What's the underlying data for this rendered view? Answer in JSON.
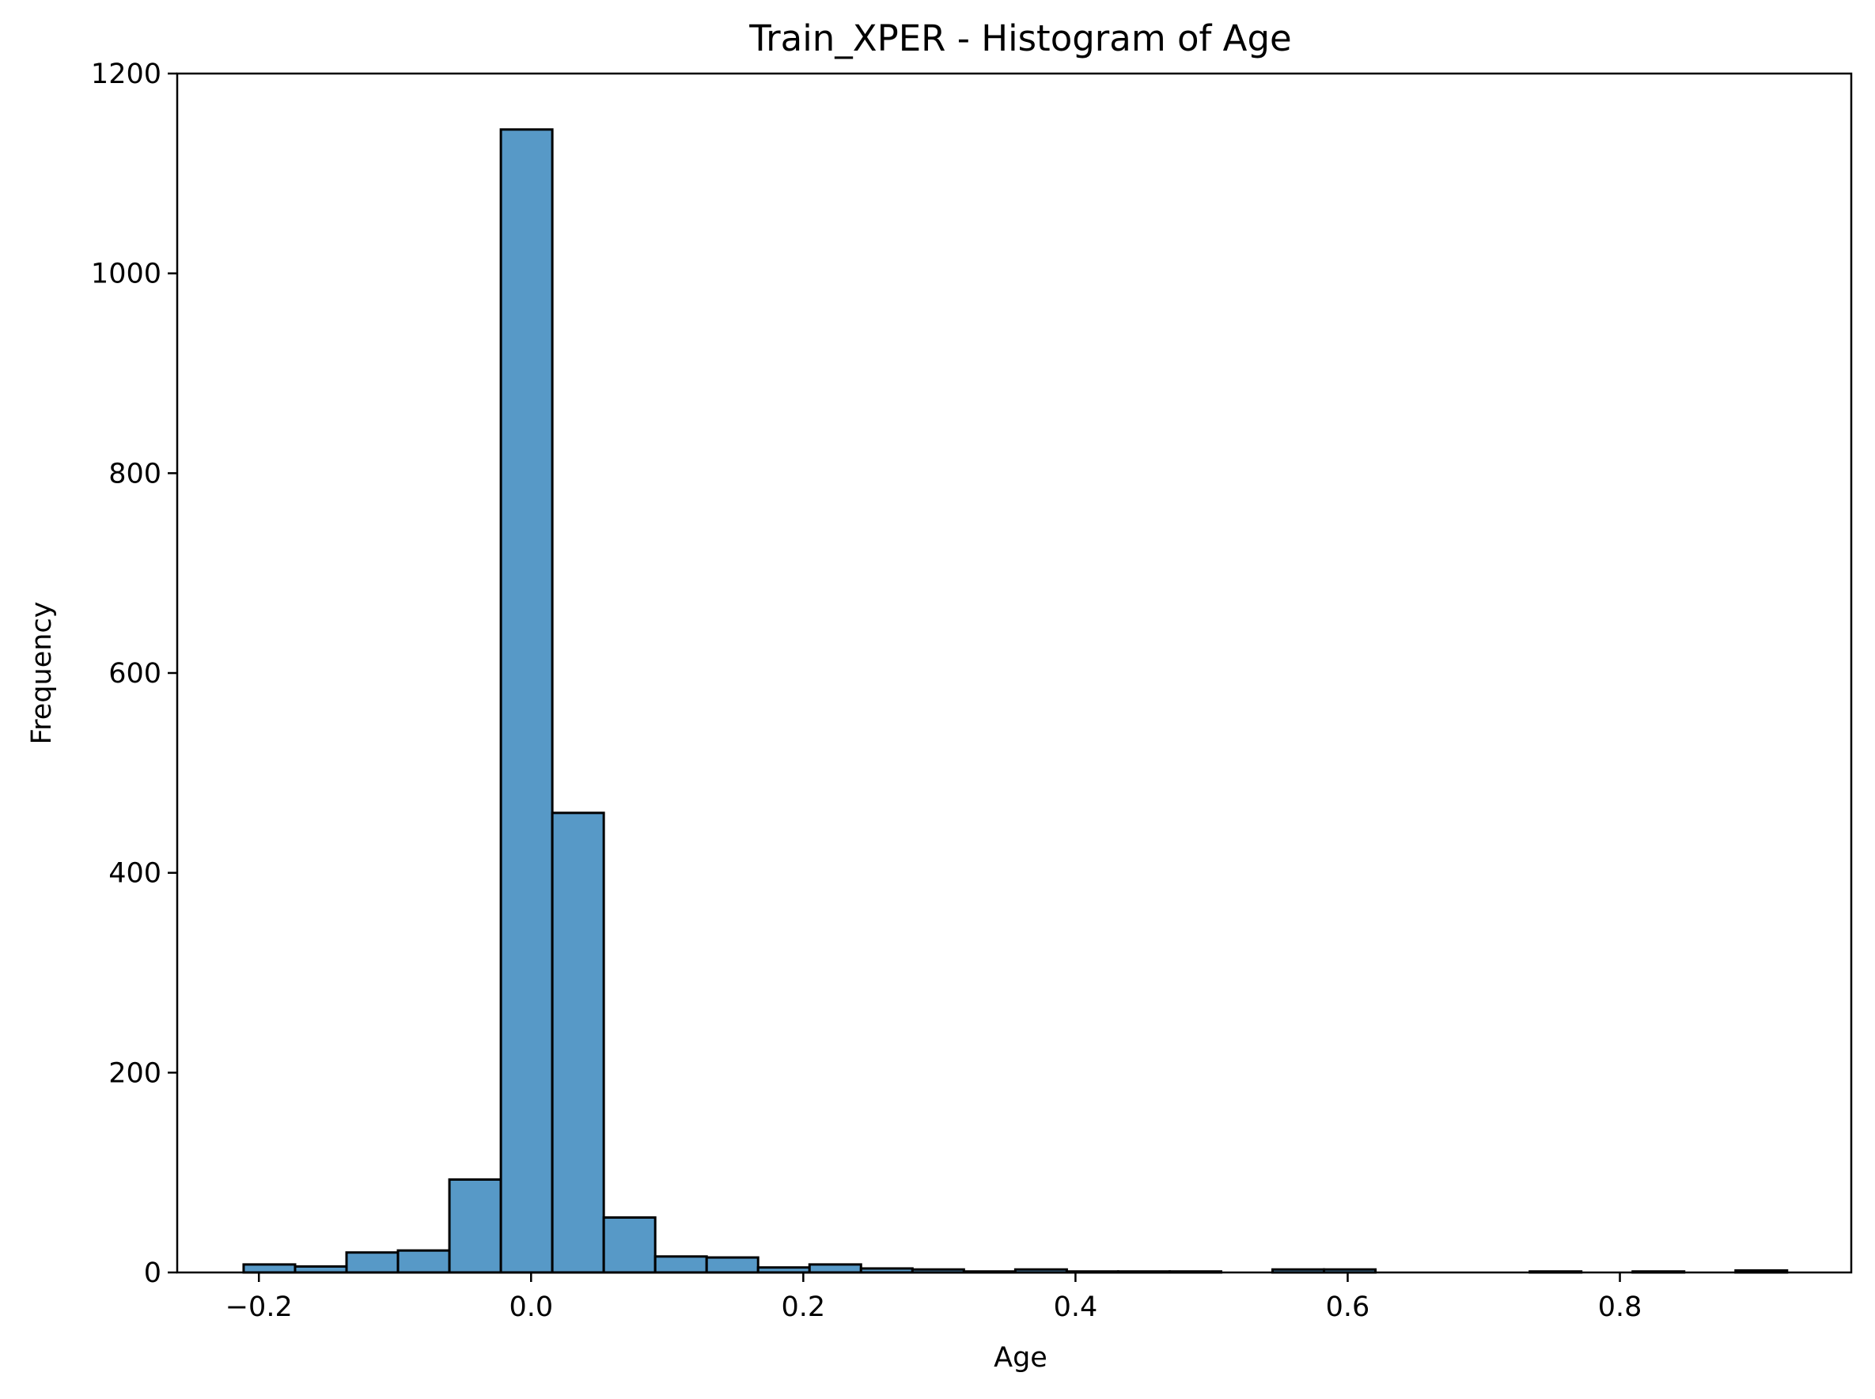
{
  "chart_data": {
    "type": "bar",
    "subtype": "histogram",
    "title": "Train_XPER - Histogram of Age",
    "xlabel": "Age",
    "ylabel": "Frequency",
    "xlim": [
      -0.26,
      0.97
    ],
    "ylim": [
      0,
      1200
    ],
    "x_ticks": [
      -0.2,
      0.0,
      0.2,
      0.4,
      0.6,
      0.8
    ],
    "x_tick_labels": [
      "−0.2",
      "0.0",
      "0.2",
      "0.4",
      "0.6",
      "0.8"
    ],
    "y_ticks": [
      0,
      200,
      400,
      600,
      800,
      1000,
      1200
    ],
    "y_tick_labels": [
      "0",
      "200",
      "400",
      "600",
      "800",
      "1000",
      "1200"
    ],
    "grid": false,
    "legend": "none",
    "bar_color": "#5799c7",
    "edge_color": "#000000",
    "bins": [
      {
        "x0": -0.2112,
        "x1": -0.1734,
        "count": 8
      },
      {
        "x0": -0.1734,
        "x1": -0.1356,
        "count": 6
      },
      {
        "x0": -0.1356,
        "x1": -0.0978,
        "count": 20
      },
      {
        "x0": -0.0978,
        "x1": -0.06,
        "count": 22
      },
      {
        "x0": -0.06,
        "x1": -0.0222,
        "count": 93
      },
      {
        "x0": -0.0222,
        "x1": 0.0156,
        "count": 1144
      },
      {
        "x0": 0.0156,
        "x1": 0.0534,
        "count": 460
      },
      {
        "x0": 0.0534,
        "x1": 0.0912,
        "count": 55
      },
      {
        "x0": 0.0912,
        "x1": 0.129,
        "count": 16
      },
      {
        "x0": 0.129,
        "x1": 0.1668,
        "count": 15
      },
      {
        "x0": 0.1668,
        "x1": 0.2046,
        "count": 5
      },
      {
        "x0": 0.2046,
        "x1": 0.2424,
        "count": 8
      },
      {
        "x0": 0.2424,
        "x1": 0.2802,
        "count": 4
      },
      {
        "x0": 0.2802,
        "x1": 0.318,
        "count": 3
      },
      {
        "x0": 0.318,
        "x1": 0.3558,
        "count": 1
      },
      {
        "x0": 0.3558,
        "x1": 0.3936,
        "count": 3
      },
      {
        "x0": 0.3936,
        "x1": 0.4314,
        "count": 1
      },
      {
        "x0": 0.4314,
        "x1": 0.4692,
        "count": 1
      },
      {
        "x0": 0.4692,
        "x1": 0.507,
        "count": 1
      },
      {
        "x0": 0.507,
        "x1": 0.5448,
        "count": 0
      },
      {
        "x0": 0.5448,
        "x1": 0.5826,
        "count": 3
      },
      {
        "x0": 0.5826,
        "x1": 0.6204,
        "count": 3
      },
      {
        "x0": 0.6204,
        "x1": 0.6582,
        "count": 0
      },
      {
        "x0": 0.6582,
        "x1": 0.696,
        "count": 0
      },
      {
        "x0": 0.696,
        "x1": 0.7338,
        "count": 0
      },
      {
        "x0": 0.7338,
        "x1": 0.7716,
        "count": 1
      },
      {
        "x0": 0.7716,
        "x1": 0.8094,
        "count": 0
      },
      {
        "x0": 0.8094,
        "x1": 0.8472,
        "count": 1
      },
      {
        "x0": 0.8472,
        "x1": 0.885,
        "count": 0
      },
      {
        "x0": 0.885,
        "x1": 0.9228,
        "count": 2
      }
    ]
  }
}
